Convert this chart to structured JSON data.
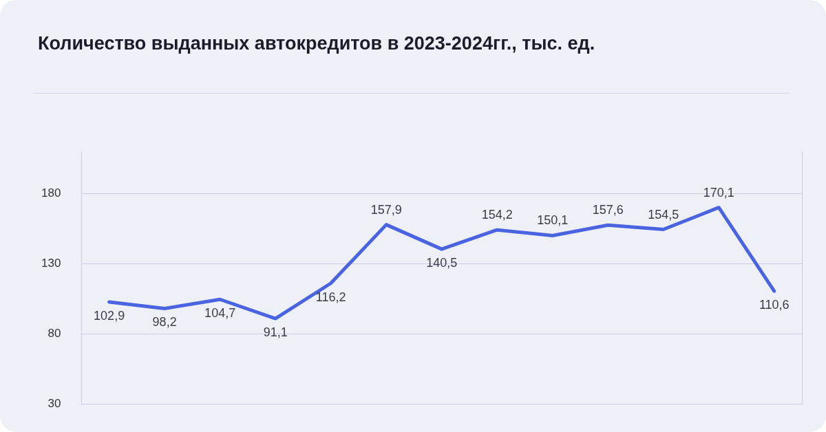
{
  "chart_data": {
    "type": "line",
    "title": "Количество выданных автокредитов в 2023-2024гг., тыс. ед.",
    "categories": [
      null,
      null,
      null,
      null,
      null,
      null,
      null,
      null,
      null,
      null,
      null,
      null,
      null
    ],
    "series": [
      {
        "color": "#4a63e0",
        "values": [
          102.9,
          98.2,
          104.7,
          91.1,
          116.2,
          157.9,
          140.5,
          154.2,
          150.1,
          157.6,
          154.5,
          170.1,
          110.6
        ],
        "value_labels": [
          "102,9",
          "98,2",
          "104,7",
          "91,1",
          "116,2",
          "157,9",
          "140,5",
          "154,2",
          "150,1",
          "157,6",
          "154,5",
          "170,1",
          "110,6"
        ]
      }
    ],
    "ylim": [
      30,
      210
    ],
    "yticks": [
      30,
      80,
      130,
      180
    ],
    "grid": "y",
    "legend": false,
    "marker": "none",
    "line_style": "solid"
  }
}
